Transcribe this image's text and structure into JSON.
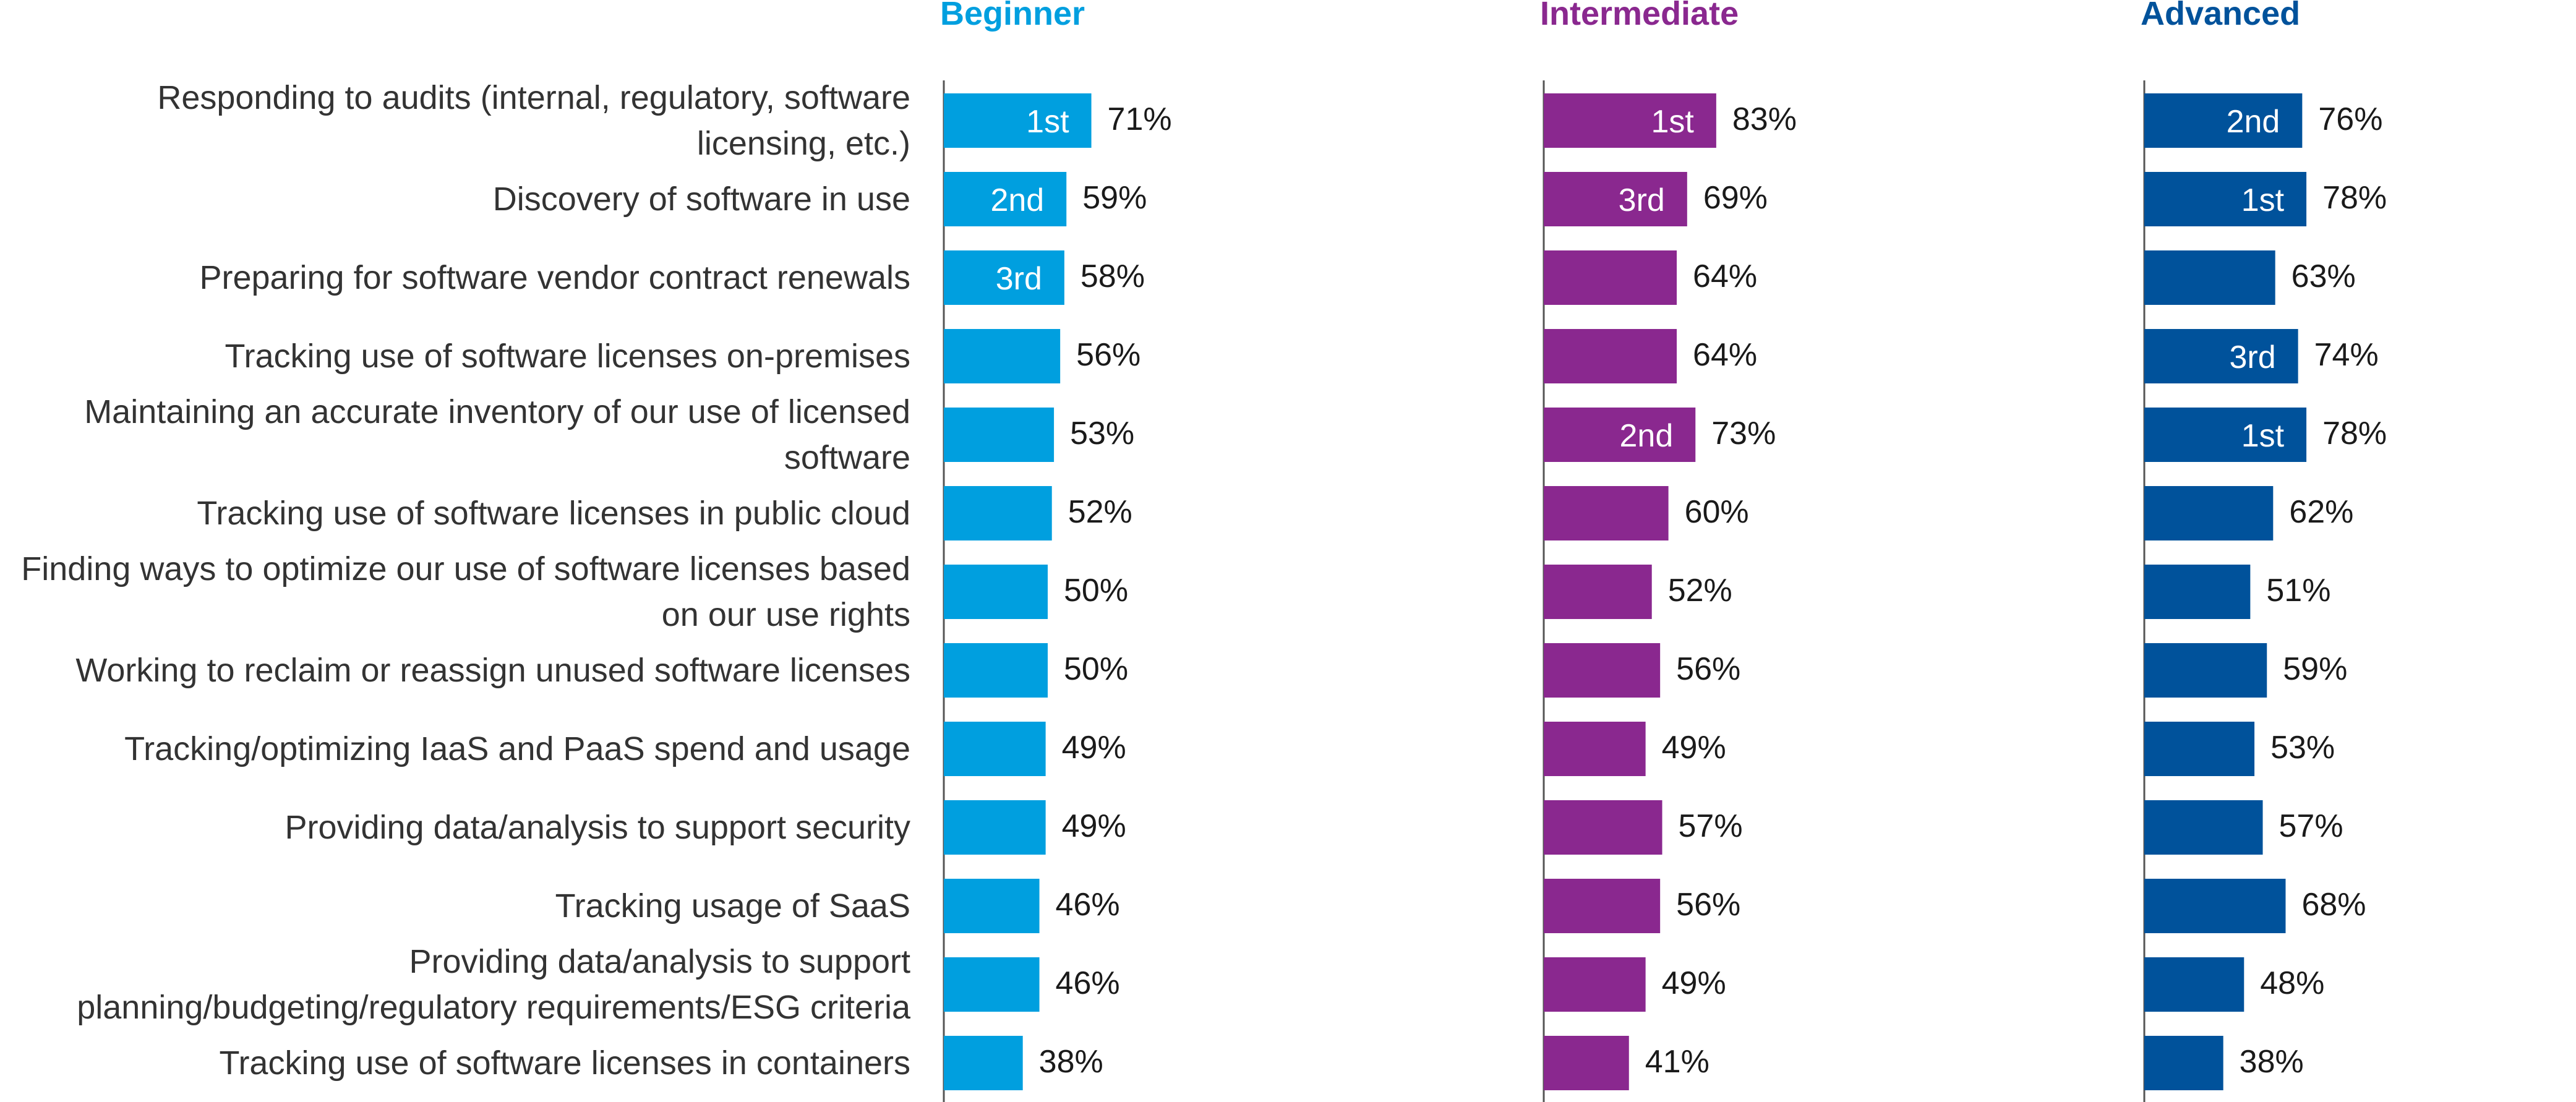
{
  "chart_data": {
    "type": "bar",
    "orientation": "horizontal",
    "categories": [
      [
        "Responding to audits (internal, regulatory, software",
        "licensing, etc.)"
      ],
      [
        "Discovery of software in use"
      ],
      [
        "Preparing for software vendor contract renewals"
      ],
      [
        "Tracking use of software licenses on-premises"
      ],
      [
        "Maintaining an accurate inventory of our use of licensed",
        "software"
      ],
      [
        "Tracking use of software licenses in public cloud"
      ],
      [
        "Finding ways to optimize our use of software licenses based",
        "on our use rights"
      ],
      [
        "Working to reclaim or reassign unused software licenses"
      ],
      [
        "Tracking/optimizing IaaS and PaaS spend and usage"
      ],
      [
        "Providing data/analysis to support security"
      ],
      [
        "Tracking usage of SaaS"
      ],
      [
        "Providing data/analysis to support",
        "planning/budgeting/regulatory requirements/ESG criteria"
      ],
      [
        "Tracking use of software licenses in containers"
      ]
    ],
    "value_suffix": "%",
    "series": [
      {
        "name": "Beginner",
        "color": "#009fdf",
        "values": [
          71,
          59,
          58,
          56,
          53,
          52,
          50,
          50,
          49,
          49,
          46,
          46,
          38
        ],
        "ranks": [
          "1st",
          "2nd",
          "3rd",
          "",
          "",
          "",
          "",
          "",
          "",
          "",
          "",
          "",
          ""
        ]
      },
      {
        "name": "Intermediate",
        "color": "#8a288f",
        "values": [
          83,
          69,
          64,
          64,
          73,
          60,
          52,
          56,
          49,
          57,
          56,
          49,
          41
        ],
        "ranks": [
          "1st",
          "3rd",
          "",
          "",
          "2nd",
          "",
          "",
          "",
          "",
          "",
          "",
          "",
          ""
        ]
      },
      {
        "name": "Advanced",
        "color": "#00529b",
        "values": [
          76,
          78,
          63,
          74,
          78,
          62,
          51,
          59,
          53,
          57,
          68,
          48,
          38
        ],
        "ranks": [
          "2nd",
          "1st",
          "",
          "3rd",
          "1st",
          "",
          "",
          "",
          "",
          "",
          "",
          "",
          ""
        ]
      }
    ],
    "xlim": [
      0,
      100
    ],
    "grid": false,
    "legend": "none"
  }
}
